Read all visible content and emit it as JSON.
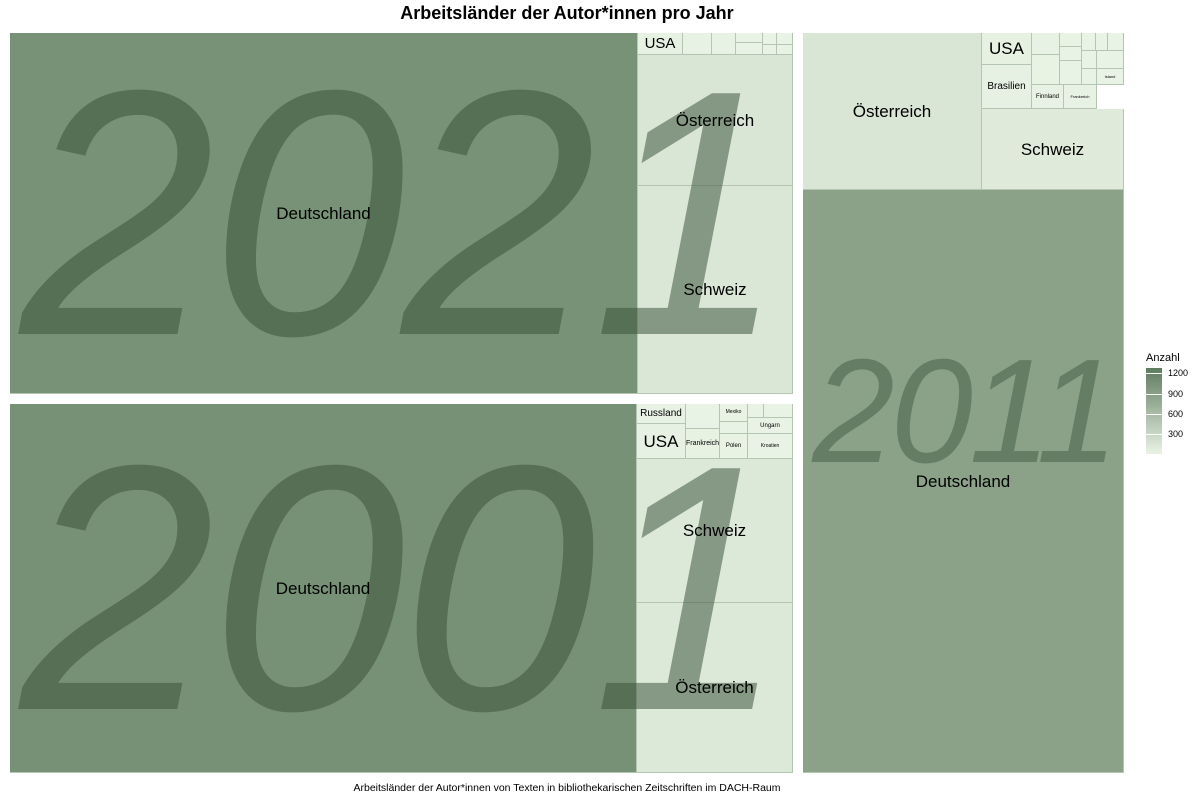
{
  "title": "Arbeitsländer der Autor*innen pro Jahr",
  "caption": "Arbeitsländer der Autor*innen von Texten in bibliothekarischen Zeitschriften im DACH-Raum",
  "colors": {
    "low": "#e9f3e5",
    "high": "#5e7c5e"
  },
  "legend": {
    "title": "Anzahl",
    "ticks": [
      1200,
      900,
      600,
      300
    ],
    "max": 1280
  },
  "chart_data": {
    "type": "treemap",
    "value_name": "Anzahl",
    "groups": [
      {
        "year": "2021",
        "cells": [
          {
            "label": "Deutschland",
            "value": 1040
          },
          {
            "label": "Österreich",
            "value": 150
          },
          {
            "label": "Schweiz",
            "value": 140
          },
          {
            "label": "USA",
            "value": 22
          },
          {
            "label": "",
            "value": 10
          },
          {
            "label": "",
            "value": 8
          },
          {
            "label": "",
            "value": 4
          },
          {
            "label": "",
            "value": 3
          },
          {
            "label": "",
            "value": 2
          },
          {
            "label": "",
            "value": 2
          },
          {
            "label": "",
            "value": 1
          },
          {
            "label": "",
            "value": 1
          }
        ]
      },
      {
        "year": "2001",
        "cells": [
          {
            "label": "Deutschland",
            "value": 1050
          },
          {
            "label": "Schweiz",
            "value": 120
          },
          {
            "label": "Österreich",
            "value": 120
          },
          {
            "label": "USA",
            "value": 20
          },
          {
            "label": "Russland",
            "value": 12
          },
          {
            "label": "Frankreich",
            "value": 16
          },
          {
            "label": "Mexiko",
            "value": 5
          },
          {
            "label": "Polen",
            "value": 5
          },
          {
            "label": "Ungarn",
            "value": 4
          },
          {
            "label": "Kroatien",
            "value": 3
          },
          {
            "label": "",
            "value": 4
          },
          {
            "label": "",
            "value": 3
          },
          {
            "label": "",
            "value": 2
          },
          {
            "label": "",
            "value": 2
          },
          {
            "label": "",
            "value": 2
          }
        ]
      },
      {
        "year": "2011",
        "cells": [
          {
            "label": "Deutschland",
            "value": 870
          },
          {
            "label": "Österreich",
            "value": 150
          },
          {
            "label": "Schweiz",
            "value": 95
          },
          {
            "label": "USA",
            "value": 25
          },
          {
            "label": "Brasilien",
            "value": 18
          },
          {
            "label": "Finnland",
            "value": 8
          },
          {
            "label": "Frankreich",
            "value": 7
          },
          {
            "label": "Island",
            "value": 3
          },
          {
            "label": "",
            "value": 6
          },
          {
            "label": "",
            "value": 5
          },
          {
            "label": "",
            "value": 5
          },
          {
            "label": "",
            "value": 4
          },
          {
            "label": "",
            "value": 3
          },
          {
            "label": "",
            "value": 3
          },
          {
            "label": "",
            "value": 2
          },
          {
            "label": "",
            "value": 2
          },
          {
            "label": "",
            "value": 2
          },
          {
            "label": "",
            "value": 2
          },
          {
            "label": "",
            "value": 1
          },
          {
            "label": "",
            "value": 1
          },
          {
            "label": "",
            "value": 1
          }
        ]
      }
    ]
  }
}
